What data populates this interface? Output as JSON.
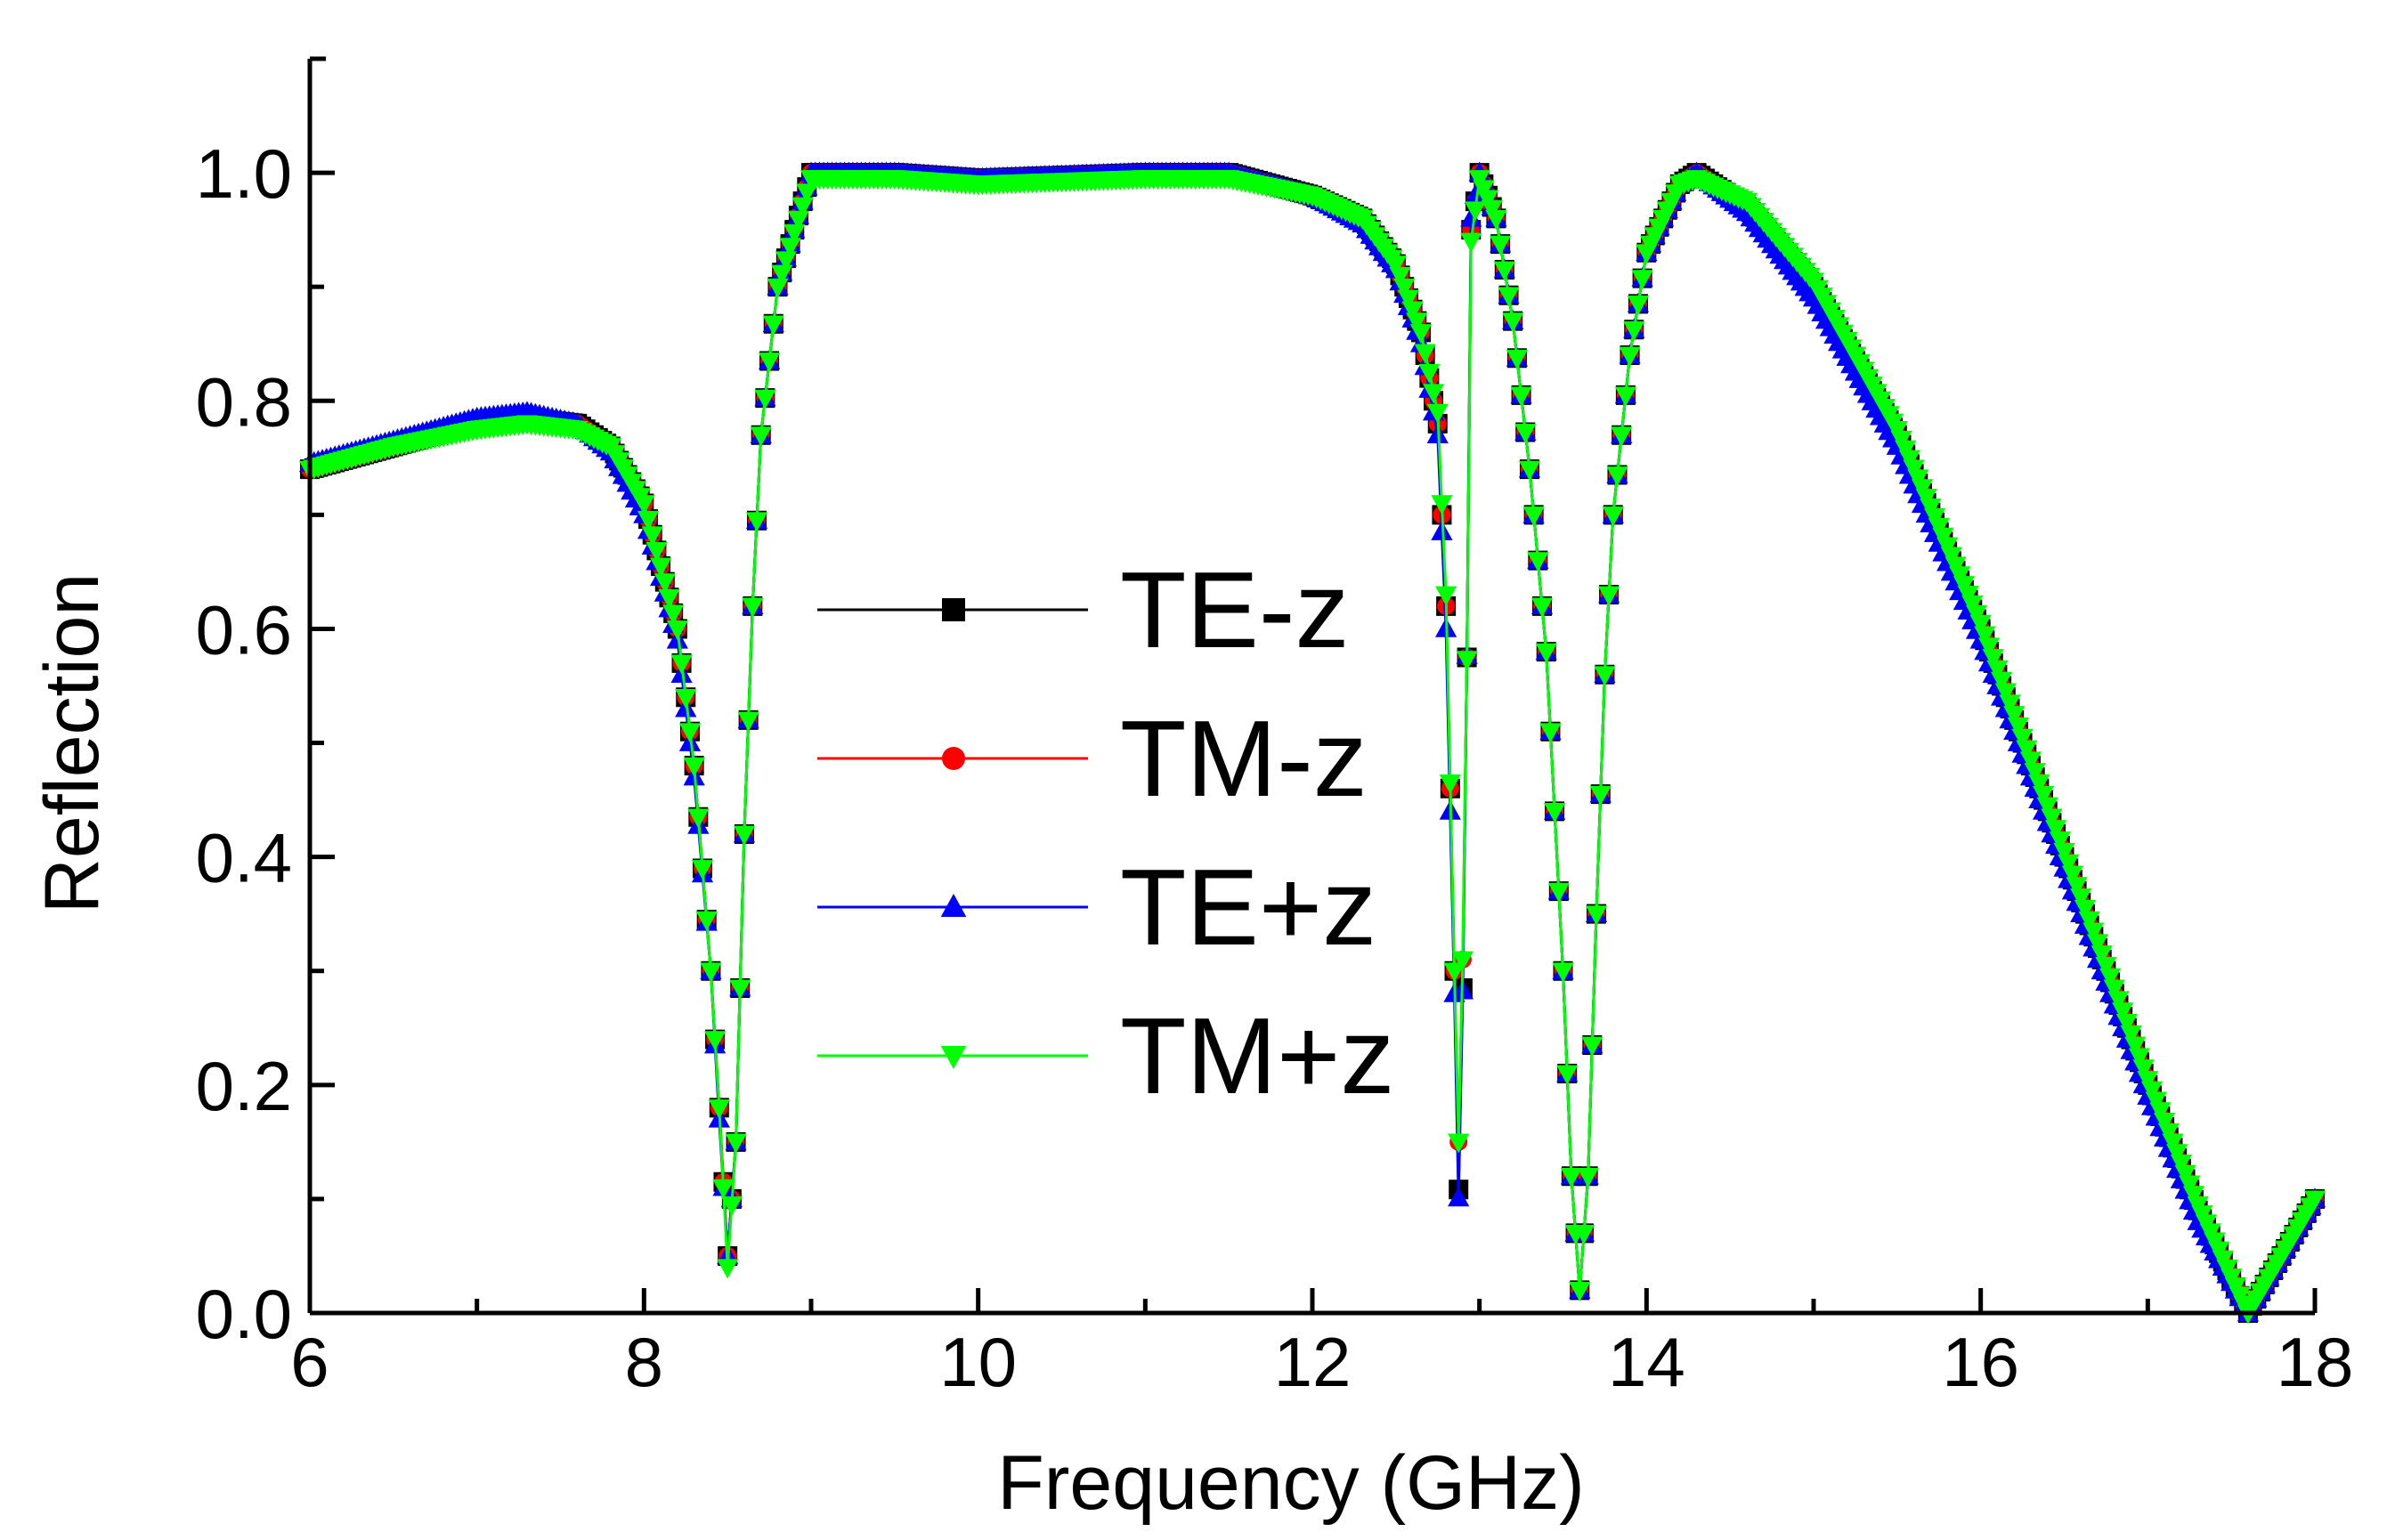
{
  "chart_data": {
    "type": "line",
    "title": "",
    "xlabel": "Frequency (GHz)",
    "ylabel": "Reflection",
    "xlim": [
      6,
      18
    ],
    "ylim": [
      0,
      1.1
    ],
    "x_major_ticks": [
      6,
      8,
      10,
      12,
      14,
      16,
      18
    ],
    "x_tick_labels": [
      "6",
      "8",
      "10",
      "12",
      "14",
      "16",
      "18"
    ],
    "y_major_ticks": [
      0,
      0.2,
      0.4,
      0.6,
      0.8,
      1.0
    ],
    "y_tick_labels": [
      "0.0",
      "0.2",
      "0.4",
      "0.6",
      "0.8",
      "1.0"
    ],
    "grid": false,
    "legend_position": "center",
    "series": [
      {
        "name": "TE-z",
        "color": "#000000",
        "marker": "square",
        "points": [
          [
            6.0,
            0.74
          ],
          [
            6.5,
            0.76
          ],
          [
            7.0,
            0.78
          ],
          [
            7.3,
            0.785
          ],
          [
            7.6,
            0.78
          ],
          [
            7.8,
            0.76
          ],
          [
            8.0,
            0.71
          ],
          [
            8.2,
            0.6
          ],
          [
            8.3,
            0.48
          ],
          [
            8.4,
            0.3
          ],
          [
            8.45,
            0.18
          ],
          [
            8.5,
            0.05
          ],
          [
            8.55,
            0.15
          ],
          [
            8.6,
            0.42
          ],
          [
            8.65,
            0.62
          ],
          [
            8.7,
            0.77
          ],
          [
            8.8,
            0.9
          ],
          [
            9.0,
            1.0
          ],
          [
            9.5,
            1.0
          ],
          [
            10.0,
            0.995
          ],
          [
            11.0,
            1.0
          ],
          [
            11.5,
            1.0
          ],
          [
            12.0,
            0.98
          ],
          [
            12.3,
            0.96
          ],
          [
            12.5,
            0.92
          ],
          [
            12.65,
            0.86
          ],
          [
            12.75,
            0.78
          ],
          [
            12.8,
            0.62
          ],
          [
            12.85,
            0.3
          ],
          [
            12.88,
            0.07
          ],
          [
            12.92,
            0.5
          ],
          [
            12.95,
            0.95
          ],
          [
            13.0,
            1.0
          ],
          [
            13.1,
            0.96
          ],
          [
            13.2,
            0.87
          ],
          [
            13.3,
            0.74
          ],
          [
            13.4,
            0.58
          ],
          [
            13.5,
            0.3
          ],
          [
            13.55,
            0.12
          ],
          [
            13.6,
            0.02
          ],
          [
            13.65,
            0.12
          ],
          [
            13.7,
            0.35
          ],
          [
            13.75,
            0.56
          ],
          [
            13.8,
            0.7
          ],
          [
            13.9,
            0.84
          ],
          [
            14.0,
            0.93
          ],
          [
            14.2,
            0.99
          ],
          [
            14.3,
            1.0
          ],
          [
            14.6,
            0.97
          ],
          [
            15.0,
            0.9
          ],
          [
            15.5,
            0.77
          ],
          [
            16.0,
            0.6
          ],
          [
            16.5,
            0.4
          ],
          [
            17.0,
            0.2
          ],
          [
            17.3,
            0.09
          ],
          [
            17.6,
            0.0
          ],
          [
            17.8,
            0.05
          ],
          [
            18.0,
            0.1
          ]
        ]
      },
      {
        "name": "TM-z",
        "color": "#ff0000",
        "marker": "circle",
        "points": [
          [
            6.0,
            0.74
          ],
          [
            6.5,
            0.76
          ],
          [
            7.0,
            0.78
          ],
          [
            7.3,
            0.785
          ],
          [
            7.6,
            0.78
          ],
          [
            7.8,
            0.76
          ],
          [
            8.0,
            0.71
          ],
          [
            8.2,
            0.6
          ],
          [
            8.3,
            0.48
          ],
          [
            8.4,
            0.3
          ],
          [
            8.45,
            0.18
          ],
          [
            8.5,
            0.05
          ],
          [
            8.55,
            0.15
          ],
          [
            8.6,
            0.42
          ],
          [
            8.65,
            0.62
          ],
          [
            8.7,
            0.77
          ],
          [
            8.8,
            0.9
          ],
          [
            9.0,
            1.0
          ],
          [
            9.5,
            1.0
          ],
          [
            10.0,
            0.995
          ],
          [
            11.0,
            1.0
          ],
          [
            11.5,
            1.0
          ],
          [
            12.0,
            0.98
          ],
          [
            12.3,
            0.96
          ],
          [
            12.5,
            0.92
          ],
          [
            12.65,
            0.86
          ],
          [
            12.75,
            0.78
          ],
          [
            12.8,
            0.62
          ],
          [
            12.85,
            0.3
          ],
          [
            12.88,
            0.12
          ],
          [
            12.92,
            0.5
          ],
          [
            12.95,
            0.95
          ],
          [
            13.0,
            1.0
          ],
          [
            13.1,
            0.96
          ],
          [
            13.2,
            0.87
          ],
          [
            13.3,
            0.74
          ],
          [
            13.4,
            0.58
          ],
          [
            13.5,
            0.3
          ],
          [
            13.55,
            0.12
          ],
          [
            13.6,
            0.02
          ],
          [
            13.65,
            0.12
          ],
          [
            13.7,
            0.35
          ],
          [
            13.75,
            0.56
          ],
          [
            13.8,
            0.7
          ],
          [
            13.9,
            0.84
          ],
          [
            14.0,
            0.93
          ],
          [
            14.2,
            0.99
          ],
          [
            14.3,
            1.0
          ],
          [
            14.6,
            0.97
          ],
          [
            15.0,
            0.9
          ],
          [
            15.5,
            0.77
          ],
          [
            16.0,
            0.6
          ],
          [
            16.5,
            0.4
          ],
          [
            17.0,
            0.2
          ],
          [
            17.3,
            0.09
          ],
          [
            17.6,
            0.0
          ],
          [
            17.8,
            0.05
          ],
          [
            18.0,
            0.1
          ]
        ]
      },
      {
        "name": "TE+z",
        "color": "#0000ff",
        "marker": "triangle-up",
        "points": [
          [
            6.0,
            0.745
          ],
          [
            6.5,
            0.765
          ],
          [
            7.0,
            0.785
          ],
          [
            7.3,
            0.79
          ],
          [
            7.6,
            0.78
          ],
          [
            7.8,
            0.755
          ],
          [
            8.0,
            0.7
          ],
          [
            8.2,
            0.59
          ],
          [
            8.3,
            0.47
          ],
          [
            8.4,
            0.3
          ],
          [
            8.45,
            0.17
          ],
          [
            8.5,
            0.05
          ],
          [
            8.55,
            0.15
          ],
          [
            8.6,
            0.42
          ],
          [
            8.65,
            0.62
          ],
          [
            8.7,
            0.77
          ],
          [
            8.8,
            0.9
          ],
          [
            9.0,
            1.0
          ],
          [
            9.5,
            1.0
          ],
          [
            10.0,
            0.995
          ],
          [
            11.0,
            1.0
          ],
          [
            11.5,
            1.0
          ],
          [
            12.0,
            0.98
          ],
          [
            12.3,
            0.955
          ],
          [
            12.5,
            0.915
          ],
          [
            12.65,
            0.85
          ],
          [
            12.75,
            0.77
          ],
          [
            12.8,
            0.6
          ],
          [
            12.85,
            0.28
          ],
          [
            12.88,
            0.065
          ],
          [
            12.92,
            0.5
          ],
          [
            12.95,
            0.96
          ],
          [
            13.0,
            1.0
          ],
          [
            13.1,
            0.96
          ],
          [
            13.2,
            0.87
          ],
          [
            13.3,
            0.74
          ],
          [
            13.4,
            0.58
          ],
          [
            13.5,
            0.3
          ],
          [
            13.55,
            0.12
          ],
          [
            13.6,
            0.02
          ],
          [
            13.65,
            0.12
          ],
          [
            13.7,
            0.35
          ],
          [
            13.75,
            0.56
          ],
          [
            13.8,
            0.7
          ],
          [
            13.9,
            0.84
          ],
          [
            14.0,
            0.93
          ],
          [
            14.2,
            0.99
          ],
          [
            14.3,
            1.0
          ],
          [
            14.6,
            0.965
          ],
          [
            15.0,
            0.89
          ],
          [
            15.5,
            0.76
          ],
          [
            16.0,
            0.59
          ],
          [
            16.5,
            0.39
          ],
          [
            17.0,
            0.19
          ],
          [
            17.3,
            0.08
          ],
          [
            17.6,
            0.0
          ],
          [
            17.8,
            0.05
          ],
          [
            18.0,
            0.1
          ]
        ]
      },
      {
        "name": "TM+z",
        "color": "#00ff00",
        "marker": "triangle-down",
        "points": [
          [
            6.0,
            0.74
          ],
          [
            6.5,
            0.76
          ],
          [
            7.0,
            0.775
          ],
          [
            7.3,
            0.78
          ],
          [
            7.6,
            0.775
          ],
          [
            7.8,
            0.76
          ],
          [
            8.0,
            0.71
          ],
          [
            8.2,
            0.6
          ],
          [
            8.3,
            0.48
          ],
          [
            8.4,
            0.3
          ],
          [
            8.45,
            0.18
          ],
          [
            8.5,
            0.04
          ],
          [
            8.55,
            0.15
          ],
          [
            8.6,
            0.42
          ],
          [
            8.65,
            0.62
          ],
          [
            8.7,
            0.77
          ],
          [
            8.8,
            0.9
          ],
          [
            9.0,
            0.995
          ],
          [
            9.5,
            0.995
          ],
          [
            10.0,
            0.99
          ],
          [
            11.0,
            0.995
          ],
          [
            11.5,
            0.995
          ],
          [
            12.0,
            0.98
          ],
          [
            12.3,
            0.96
          ],
          [
            12.5,
            0.92
          ],
          [
            12.65,
            0.86
          ],
          [
            12.75,
            0.79
          ],
          [
            12.8,
            0.63
          ],
          [
            12.85,
            0.3
          ],
          [
            12.88,
            0.12
          ],
          [
            12.92,
            0.5
          ],
          [
            12.95,
            0.94
          ],
          [
            13.0,
            0.995
          ],
          [
            13.1,
            0.96
          ],
          [
            13.2,
            0.87
          ],
          [
            13.3,
            0.74
          ],
          [
            13.4,
            0.58
          ],
          [
            13.5,
            0.3
          ],
          [
            13.55,
            0.12
          ],
          [
            13.6,
            0.02
          ],
          [
            13.65,
            0.12
          ],
          [
            13.7,
            0.35
          ],
          [
            13.75,
            0.56
          ],
          [
            13.8,
            0.7
          ],
          [
            13.9,
            0.84
          ],
          [
            14.0,
            0.93
          ],
          [
            14.2,
            0.99
          ],
          [
            14.3,
            0.995
          ],
          [
            14.6,
            0.975
          ],
          [
            15.0,
            0.905
          ],
          [
            15.5,
            0.775
          ],
          [
            16.0,
            0.605
          ],
          [
            16.5,
            0.405
          ],
          [
            17.0,
            0.205
          ],
          [
            17.3,
            0.095
          ],
          [
            17.6,
            0.0
          ],
          [
            17.8,
            0.05
          ],
          [
            18.0,
            0.1
          ]
        ]
      }
    ]
  }
}
